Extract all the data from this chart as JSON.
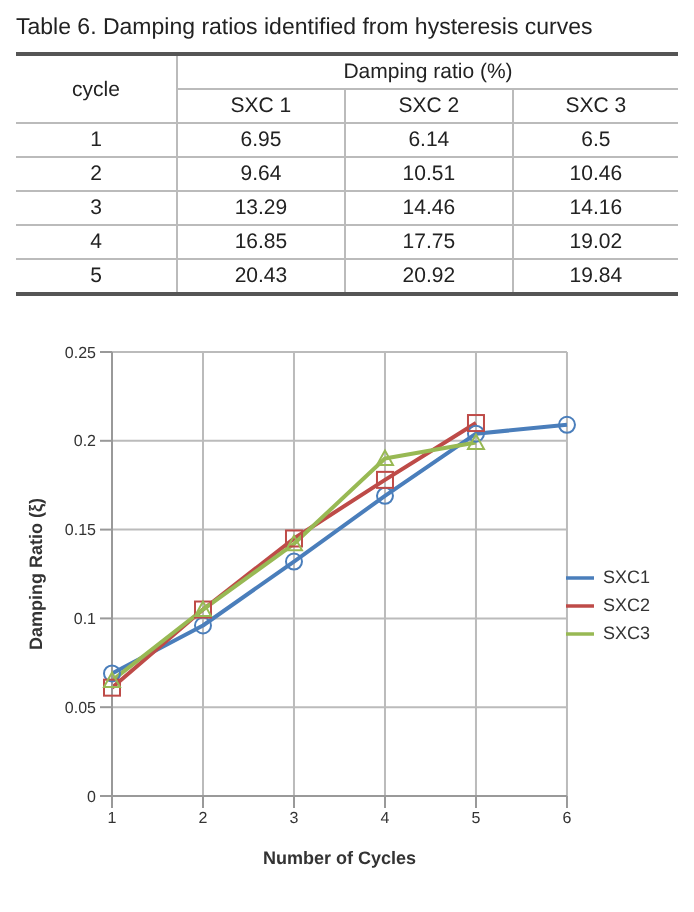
{
  "chart_data": [
    {
      "type": "heatmap",
      "title": "Table 6. Damping ratios identified from hysteresis curves",
      "ylabel": "cycle",
      "xlabel": "Damping ratio (%)",
      "categories": [
        "SXC 1",
        "SXC 2",
        "SXC 3"
      ],
      "y_categories": [
        "1",
        "2",
        "3",
        "4",
        "5"
      ],
      "cells": [
        [
          6.95,
          6.14,
          6.5
        ],
        [
          9.64,
          10.51,
          10.46
        ],
        [
          13.29,
          14.46,
          14.16
        ],
        [
          16.85,
          17.75,
          19.02
        ],
        [
          20.43,
          20.92,
          19.84
        ]
      ],
      "data_labels": true
    },
    {
      "type": "line",
      "categories": [
        "1",
        "2",
        "3",
        "4",
        "5",
        "6"
      ],
      "series": [
        {
          "name": "SXC1",
          "color": "#4a7ebb",
          "marker": "circle",
          "values": [
            0.069,
            0.096,
            0.132,
            0.169,
            0.204,
            0.209
          ]
        },
        {
          "name": "SXC2",
          "color": "#be4b48",
          "marker": "square",
          "values": [
            0.061,
            0.105,
            0.145,
            0.178,
            0.21,
            null
          ]
        },
        {
          "name": "SXC3",
          "color": "#98b954",
          "marker": "triangle",
          "values": [
            0.065,
            0.105,
            0.142,
            0.19,
            0.199,
            null
          ]
        }
      ],
      "xlabel": "Number of Cycles",
      "ylabel": "Damping Ratio (ξ)",
      "ylim": [
        0,
        0.25
      ],
      "yticks": [
        0,
        0.05,
        0.1,
        0.15,
        0.2,
        0.25
      ],
      "grid": true,
      "legend": "right",
      "line_style": "solid"
    }
  ]
}
